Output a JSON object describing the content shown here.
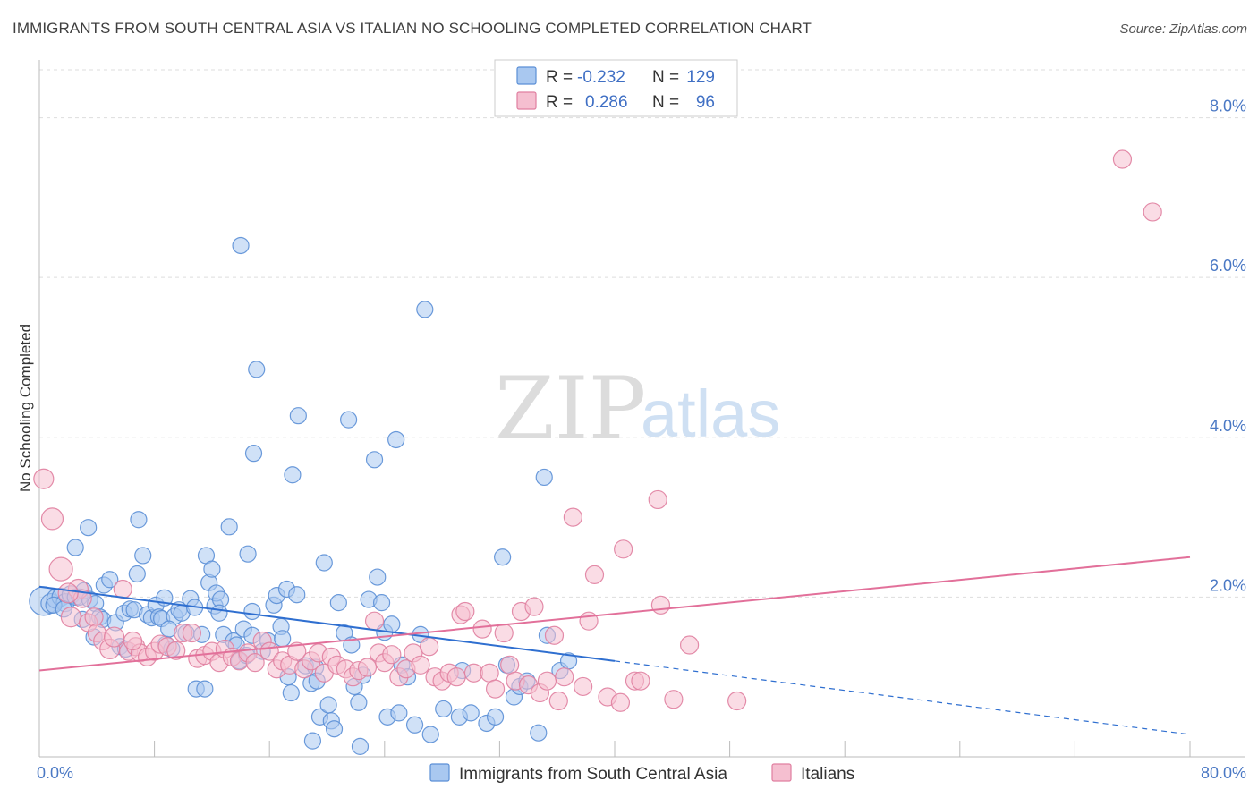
{
  "header": {
    "title": "IMMIGRANTS FROM SOUTH CENTRAL ASIA VS ITALIAN NO SCHOOLING COMPLETED CORRELATION CHART",
    "source": "Source: ZipAtlas.com"
  },
  "watermark": {
    "zip": "ZIP",
    "atlas": "atlas"
  },
  "legend": {
    "r_label": "R =",
    "n_label": "N =",
    "entries": [
      {
        "r": "-0.232",
        "n": "129",
        "color": "#a9c8f0",
        "edge": "#5b8fd6"
      },
      {
        "r": "0.286",
        "n": "96",
        "color": "#f5bfd0",
        "edge": "#e07fa0"
      }
    ]
  },
  "bottom_legend": [
    {
      "label": "Immigrants from South Central Asia",
      "color": "#a9c8f0",
      "edge": "#5b8fd6"
    },
    {
      "label": "Italians",
      "color": "#f5bfd0",
      "edge": "#e07fa0"
    }
  ],
  "chart_data": {
    "type": "scatter",
    "xlabel": "",
    "ylabel": "No Schooling Completed",
    "xlim": [
      0,
      80
    ],
    "ylim": [
      0,
      8.6
    ],
    "x_tick_labels": [
      {
        "value": 0,
        "label": "0.0%"
      },
      {
        "value": 80,
        "label": "80.0%"
      }
    ],
    "x_minor_ticks": [
      0,
      8,
      16,
      24,
      32,
      40,
      48,
      56,
      64,
      72,
      80
    ],
    "y_ticks": [
      {
        "value": 2,
        "label": "2.0%"
      },
      {
        "value": 4,
        "label": "4.0%"
      },
      {
        "value": 6,
        "label": "6.0%"
      },
      {
        "value": 8,
        "label": "8.0%"
      }
    ],
    "grid": true,
    "legend_placement": "top-center",
    "series": [
      {
        "name": "Immigrants from South Central Asia",
        "color": "#a9c8f0",
        "edge": "#5b8fd6",
        "trend": {
          "x0": 0,
          "y0": 2.13,
          "x1": 40,
          "y1": 1.2,
          "dash_to_x": 80,
          "dash_to_y": 0.28,
          "color": "#2f6fd0"
        },
        "points": [
          [
            0.3,
            1.95,
            16
          ],
          [
            0.8,
            1.92,
            11
          ],
          [
            1.2,
            1.98,
            11
          ],
          [
            1.5,
            2.0,
            10
          ],
          [
            1.8,
            1.93,
            10
          ],
          [
            2.2,
            2.03,
            10
          ],
          [
            2.5,
            2.0,
            9
          ],
          [
            1.0,
            1.9,
            9
          ],
          [
            1.7,
            1.85,
            9
          ],
          [
            2.8,
            2.0,
            9
          ],
          [
            3.1,
            2.08,
            9
          ],
          [
            3.5,
            1.97,
            9
          ],
          [
            2.5,
            2.62,
            9
          ],
          [
            3.4,
            2.87,
            9
          ],
          [
            3.9,
            1.92,
            9
          ],
          [
            4.2,
            1.75,
            9
          ],
          [
            4.4,
            1.72,
            9
          ],
          [
            3.8,
            1.5,
            9
          ],
          [
            4.5,
            2.15,
            9
          ],
          [
            4.9,
            2.22,
            9
          ],
          [
            5.3,
            1.68,
            9
          ],
          [
            5.6,
            1.38,
            9
          ],
          [
            5.9,
            1.8,
            9
          ],
          [
            6.3,
            1.85,
            9
          ],
          [
            6.6,
            1.84,
            9
          ],
          [
            6.8,
            2.29,
            9
          ],
          [
            6.9,
            2.97,
            9
          ],
          [
            7.2,
            2.52,
            9
          ],
          [
            7.5,
            1.78,
            9
          ],
          [
            7.8,
            1.74,
            9
          ],
          [
            8.1,
            1.9,
            9
          ],
          [
            8.3,
            1.75,
            9
          ],
          [
            8.5,
            1.73,
            9
          ],
          [
            8.7,
            1.99,
            9
          ],
          [
            8.8,
            1.41,
            9
          ],
          [
            9.2,
            1.35,
            9
          ],
          [
            9.4,
            1.76,
            9
          ],
          [
            9.7,
            1.84,
            9
          ],
          [
            9.9,
            1.8,
            9
          ],
          [
            10.2,
            1.55,
            9
          ],
          [
            10.5,
            1.98,
            9
          ],
          [
            10.8,
            1.87,
            9
          ],
          [
            10.9,
            0.85,
            9
          ],
          [
            11.3,
            1.53,
            9
          ],
          [
            11.6,
            2.52,
            9
          ],
          [
            11.8,
            2.18,
            9
          ],
          [
            12.0,
            2.35,
            9
          ],
          [
            12.2,
            1.89,
            9
          ],
          [
            12.3,
            2.05,
            9
          ],
          [
            12.6,
            1.97,
            9
          ],
          [
            12.5,
            1.8,
            9
          ],
          [
            12.8,
            1.53,
            9
          ],
          [
            13.2,
            2.88,
            9
          ],
          [
            13.5,
            1.45,
            9
          ],
          [
            13.7,
            1.4,
            9
          ],
          [
            13.9,
            1.2,
            9
          ],
          [
            14.2,
            1.6,
            9
          ],
          [
            14.4,
            1.27,
            9
          ],
          [
            14.5,
            2.54,
            9
          ],
          [
            14.8,
            1.52,
            9
          ],
          [
            14.0,
            6.4,
            9
          ],
          [
            14.8,
            1.82,
            9
          ],
          [
            14.9,
            3.8,
            9
          ],
          [
            15.1,
            4.85,
            9
          ],
          [
            15.5,
            1.32,
            9
          ],
          [
            15.9,
            1.45,
            9
          ],
          [
            16.3,
            1.9,
            9
          ],
          [
            16.5,
            2.02,
            9
          ],
          [
            16.8,
            1.63,
            9
          ],
          [
            16.9,
            1.48,
            9
          ],
          [
            17.2,
            2.1,
            9
          ],
          [
            17.3,
            1.0,
            9
          ],
          [
            17.5,
            0.8,
            9
          ],
          [
            17.6,
            3.53,
            9
          ],
          [
            17.9,
            2.03,
            9
          ],
          [
            18.0,
            4.27,
            9
          ],
          [
            18.5,
            1.14,
            9
          ],
          [
            18.9,
            0.92,
            9
          ],
          [
            19.2,
            1.12,
            9
          ],
          [
            19.3,
            0.95,
            9
          ],
          [
            19.5,
            0.5,
            9
          ],
          [
            19.8,
            2.43,
            9
          ],
          [
            20.1,
            0.65,
            9
          ],
          [
            20.3,
            0.45,
            9
          ],
          [
            20.5,
            0.35,
            9
          ],
          [
            20.8,
            1.93,
            9
          ],
          [
            21.2,
            1.55,
            9
          ],
          [
            21.5,
            4.22,
            9
          ],
          [
            21.7,
            1.4,
            9
          ],
          [
            21.9,
            0.88,
            9
          ],
          [
            22.2,
            0.68,
            9
          ],
          [
            22.3,
            0.13,
            9
          ],
          [
            22.5,
            1.02,
            9
          ],
          [
            22.9,
            1.97,
            9
          ],
          [
            23.3,
            3.72,
            9
          ],
          [
            23.5,
            2.25,
            9
          ],
          [
            23.8,
            1.93,
            9
          ],
          [
            24.0,
            1.56,
            9
          ],
          [
            24.2,
            0.5,
            9
          ],
          [
            24.5,
            1.66,
            9
          ],
          [
            24.8,
            3.97,
            9
          ],
          [
            25.0,
            0.55,
            9
          ],
          [
            25.2,
            1.15,
            9
          ],
          [
            25.6,
            1.0,
            9
          ],
          [
            26.1,
            0.4,
            9
          ],
          [
            26.5,
            1.53,
            9
          ],
          [
            26.8,
            5.6,
            9
          ],
          [
            27.2,
            0.28,
            9
          ],
          [
            28.1,
            0.6,
            9
          ],
          [
            29.2,
            0.5,
            9
          ],
          [
            29.4,
            1.08,
            9
          ],
          [
            30.0,
            0.55,
            9
          ],
          [
            31.1,
            0.42,
            9
          ],
          [
            31.7,
            0.5,
            9
          ],
          [
            32.2,
            2.5,
            9
          ],
          [
            32.5,
            1.15,
            9
          ],
          [
            33.0,
            0.75,
            9
          ],
          [
            33.4,
            0.88,
            9
          ],
          [
            33.9,
            0.95,
            9
          ],
          [
            34.7,
            0.3,
            9
          ],
          [
            35.1,
            3.5,
            9
          ],
          [
            35.3,
            1.52,
            9
          ],
          [
            36.2,
            1.08,
            9
          ],
          [
            36.8,
            1.2,
            9
          ],
          [
            19.0,
            0.2,
            9
          ],
          [
            11.5,
            0.85,
            9
          ],
          [
            9.0,
            1.6,
            9
          ],
          [
            6.0,
            1.35,
            9
          ],
          [
            3.0,
            1.72,
            9
          ]
        ]
      },
      {
        "name": "Italians",
        "color": "#f5bfd0",
        "edge": "#e07fa0",
        "trend": {
          "x0": 0,
          "y0": 1.08,
          "x1": 80,
          "y1": 2.5,
          "color": "#e2709a"
        },
        "points": [
          [
            0.3,
            3.48,
            11
          ],
          [
            0.9,
            2.98,
            12
          ],
          [
            1.5,
            2.35,
            13
          ],
          [
            2.2,
            1.75,
            11
          ],
          [
            2.7,
            2.1,
            11
          ],
          [
            3.0,
            1.98,
            10
          ],
          [
            3.4,
            1.68,
            10
          ],
          [
            3.8,
            1.75,
            10
          ],
          [
            4.0,
            1.55,
            10
          ],
          [
            4.4,
            1.45,
            10
          ],
          [
            4.9,
            1.35,
            11
          ],
          [
            5.2,
            1.5,
            11
          ],
          [
            5.8,
            2.1,
            10
          ],
          [
            6.2,
            1.32,
            10
          ],
          [
            6.7,
            1.38,
            10
          ],
          [
            7.0,
            1.3,
            10
          ],
          [
            7.5,
            1.25,
            10
          ],
          [
            8.0,
            1.32,
            10
          ],
          [
            8.4,
            1.41,
            10
          ],
          [
            8.9,
            1.38,
            10
          ],
          [
            9.5,
            1.33,
            10
          ],
          [
            10.0,
            1.55,
            10
          ],
          [
            10.6,
            1.55,
            10
          ],
          [
            11.0,
            1.23,
            10
          ],
          [
            11.5,
            1.27,
            10
          ],
          [
            12.0,
            1.32,
            10
          ],
          [
            12.5,
            1.18,
            10
          ],
          [
            12.9,
            1.35,
            10
          ],
          [
            13.4,
            1.25,
            10
          ],
          [
            13.9,
            1.2,
            10
          ],
          [
            14.5,
            1.3,
            10
          ],
          [
            15.0,
            1.18,
            10
          ],
          [
            15.5,
            1.45,
            10
          ],
          [
            16.0,
            1.32,
            10
          ],
          [
            16.5,
            1.1,
            10
          ],
          [
            16.9,
            1.2,
            10
          ],
          [
            17.4,
            1.15,
            10
          ],
          [
            17.9,
            1.32,
            10
          ],
          [
            18.4,
            1.1,
            10
          ],
          [
            18.9,
            1.2,
            10
          ],
          [
            19.4,
            1.3,
            10
          ],
          [
            19.8,
            1.05,
            10
          ],
          [
            20.3,
            1.25,
            10
          ],
          [
            20.7,
            1.15,
            10
          ],
          [
            21.3,
            1.1,
            10
          ],
          [
            21.8,
            1.0,
            10
          ],
          [
            22.2,
            1.08,
            10
          ],
          [
            22.8,
            1.12,
            10
          ],
          [
            23.3,
            1.7,
            10
          ],
          [
            23.6,
            1.3,
            10
          ],
          [
            24.0,
            1.18,
            10
          ],
          [
            24.5,
            1.28,
            10
          ],
          [
            25.0,
            1.0,
            10
          ],
          [
            25.5,
            1.1,
            10
          ],
          [
            26.0,
            1.3,
            10
          ],
          [
            26.5,
            1.15,
            10
          ],
          [
            27.1,
            1.38,
            10
          ],
          [
            27.5,
            1.0,
            10
          ],
          [
            28.0,
            0.95,
            10
          ],
          [
            28.5,
            1.05,
            10
          ],
          [
            29.0,
            1.0,
            10
          ],
          [
            29.3,
            1.78,
            10
          ],
          [
            29.6,
            1.82,
            10
          ],
          [
            30.2,
            1.05,
            10
          ],
          [
            30.8,
            1.6,
            10
          ],
          [
            31.3,
            1.05,
            10
          ],
          [
            31.7,
            0.85,
            10
          ],
          [
            32.3,
            1.55,
            10
          ],
          [
            32.7,
            1.15,
            10
          ],
          [
            33.1,
            0.95,
            10
          ],
          [
            33.5,
            1.82,
            10
          ],
          [
            34.0,
            0.9,
            10
          ],
          [
            34.4,
            1.88,
            10
          ],
          [
            34.8,
            0.8,
            10
          ],
          [
            35.3,
            0.95,
            10
          ],
          [
            35.8,
            1.52,
            10
          ],
          [
            36.1,
            0.7,
            10
          ],
          [
            36.5,
            1.0,
            10
          ],
          [
            37.1,
            3.0,
            10
          ],
          [
            37.8,
            0.88,
            10
          ],
          [
            38.2,
            1.7,
            10
          ],
          [
            38.6,
            2.28,
            10
          ],
          [
            39.5,
            0.75,
            10
          ],
          [
            40.4,
            0.68,
            10
          ],
          [
            40.6,
            2.6,
            10
          ],
          [
            41.4,
            0.95,
            10
          ],
          [
            41.8,
            0.95,
            10
          ],
          [
            43.0,
            3.22,
            10
          ],
          [
            43.2,
            1.9,
            10
          ],
          [
            44.1,
            0.72,
            10
          ],
          [
            45.2,
            1.4,
            10
          ],
          [
            48.5,
            0.7,
            10
          ],
          [
            75.3,
            7.48,
            10
          ],
          [
            77.4,
            6.82,
            10
          ],
          [
            2.0,
            2.05,
            11
          ],
          [
            6.5,
            1.45,
            10
          ]
        ]
      }
    ]
  }
}
